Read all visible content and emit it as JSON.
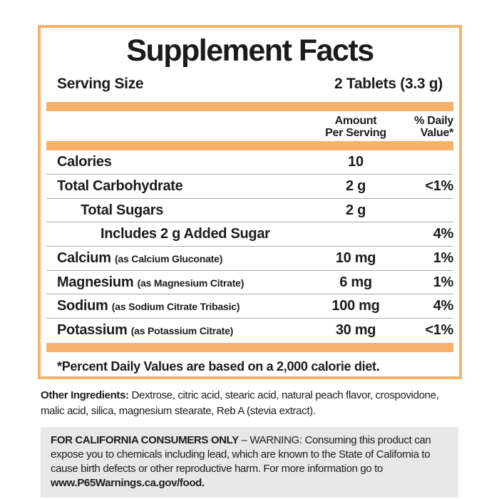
{
  "panel": {
    "title": "Supplement Facts",
    "serving_size_label": "Serving Size",
    "serving_size_value": "2 Tablets (3.3 g)",
    "columns": {
      "amount_line1": "Amount",
      "amount_line2": "Per Serving",
      "dv_line1": "% Daily",
      "dv_line2": "Value*"
    },
    "rows": [
      {
        "name": "Calories",
        "form": "",
        "amount": "10",
        "dv": "",
        "indent": 0
      },
      {
        "name": "Total Carbohydrate",
        "form": "",
        "amount": "2 g",
        "dv": "<1%",
        "indent": 0
      },
      {
        "name": "Total Sugars",
        "form": "",
        "amount": "2 g",
        "dv": "",
        "indent": 1
      },
      {
        "name": "Includes 2 g Added Sugar",
        "form": "",
        "amount": "",
        "dv": "4%",
        "indent": 2
      },
      {
        "name": "Calcium",
        "form": "(as Calcium Gluconate)",
        "amount": "10 mg",
        "dv": "1%",
        "indent": 0
      },
      {
        "name": "Magnesium",
        "form": "(as Magnesium Citrate)",
        "amount": "6 mg",
        "dv": "1%",
        "indent": 0
      },
      {
        "name": "Sodium",
        "form": "(as Sodium Citrate Tribasic)",
        "amount": "100 mg",
        "dv": "4%",
        "indent": 0
      },
      {
        "name": "Potassium",
        "form": "(as Potassium Citrate)",
        "amount": "30 mg",
        "dv": "<1%",
        "indent": 0
      }
    ],
    "footnote": "*Percent Daily Values are based on a 2,000 calorie diet."
  },
  "other_ingredients": {
    "label": "Other Ingredients:",
    "text": "Dextrose, citric acid, stearic acid, natural peach flavor, crospovidone, malic acid, silica, magnesium stearate, Reb A (stevia extract)."
  },
  "california_warning": {
    "label": "FOR CALIFORNIA CONSUMERS ONLY",
    "text": "– WARNING: Consuming this product can expose you to chemicals including lead, which are known to the State of California to cause birth defects or other reproductive harm. For more information go to",
    "link": "www.P65Warnings.ca.gov/food."
  },
  "colors": {
    "accent_orange": "#F6B26C",
    "divider_gray": "#ABABAB",
    "warning_background": "#E8E8E8",
    "text_black": "#1B1B1B"
  }
}
